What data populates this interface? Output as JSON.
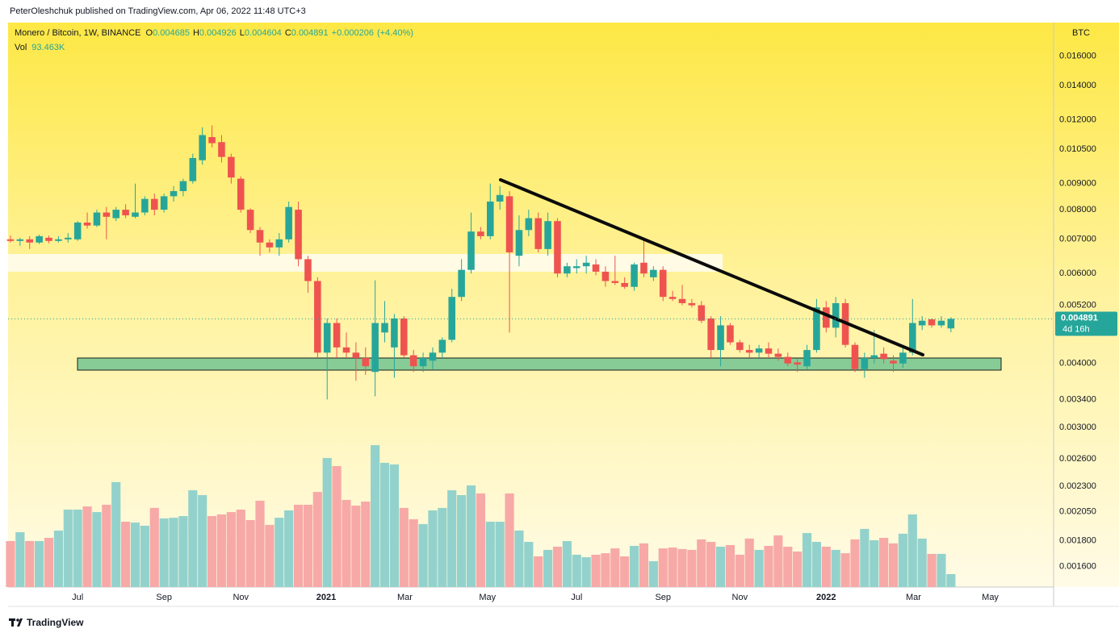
{
  "chart_data": {
    "type": "candlestick",
    "published": "PeterOleshchuk published on TradingView.com, Apr 06, 2022 11:48 UTC+3",
    "title": "Monero / Bitcoin, 1W, BINANCE",
    "ohlc_letters": [
      "O",
      "H",
      "L",
      "C"
    ],
    "change": "+0.000206",
    "change_pct": "(+4.40%)",
    "unit": "BTC",
    "countdown": "4d 16h",
    "brand": "TradingView",
    "up_color": "#26a69a",
    "down_color": "#ef5350",
    "log_scale": true,
    "grid": false,
    "x": [
      0,
      1,
      2,
      3,
      4,
      5,
      6,
      7,
      8,
      9,
      10,
      11,
      12,
      13,
      14,
      15,
      16,
      17,
      18,
      19,
      20,
      21,
      22,
      23,
      24,
      25,
      26,
      27,
      28,
      29,
      30,
      31,
      32,
      33,
      34,
      35,
      36,
      37,
      38,
      39,
      40,
      41,
      42,
      43,
      44,
      45,
      46,
      47,
      48,
      49,
      50,
      51,
      52,
      53,
      54,
      55,
      56,
      57,
      58,
      59,
      60,
      61,
      62,
      63,
      64,
      65,
      66,
      67,
      68,
      69,
      70,
      71,
      72,
      73,
      74,
      75,
      76,
      77,
      78,
      79,
      80,
      81,
      82,
      83,
      84,
      85,
      86,
      87,
      88,
      89,
      90,
      91,
      92,
      93,
      94,
      95,
      96,
      97,
      98
    ],
    "xlim": [
      -0.25,
      108.7
    ],
    "xticks": [
      {
        "value": 7.0,
        "label": "Jul"
      },
      {
        "value": 16.0,
        "label": "Sep"
      },
      {
        "value": 24.0,
        "label": "Nov"
      },
      {
        "value": 32.9,
        "label": "2021"
      },
      {
        "value": 41.1,
        "label": "Mar"
      },
      {
        "value": 49.7,
        "label": "May"
      },
      {
        "value": 59.0,
        "label": "Jul"
      },
      {
        "value": 68.0,
        "label": "Sep"
      },
      {
        "value": 76.0,
        "label": "Nov"
      },
      {
        "value": 85.0,
        "label": "2022"
      },
      {
        "value": 94.1,
        "label": "Mar"
      },
      {
        "value": 102.1,
        "label": "May"
      }
    ],
    "ylim": [
      0.00146,
      0.0186
    ],
    "yticks": [
      {
        "value": 0.016,
        "label": "0.016000"
      },
      {
        "value": 0.014,
        "label": "0.014000"
      },
      {
        "value": 0.012,
        "label": "0.012000"
      },
      {
        "value": 0.0105,
        "label": "0.010500"
      },
      {
        "value": 0.009,
        "label": "0.009000"
      },
      {
        "value": 0.008,
        "label": "0.008000"
      },
      {
        "value": 0.007,
        "label": "0.007000"
      },
      {
        "value": 0.006,
        "label": "0.006000"
      },
      {
        "value": 0.0052,
        "label": "0.005200"
      },
      {
        "value": 0.004,
        "label": "0.004000"
      },
      {
        "value": 0.0034,
        "label": "0.003400"
      },
      {
        "value": 0.003,
        "label": "0.003000"
      },
      {
        "value": 0.0026,
        "label": "0.002600"
      },
      {
        "value": 0.0023,
        "label": "0.002300"
      },
      {
        "value": 0.00205,
        "label": "0.002050"
      },
      {
        "value": 0.0018,
        "label": "0.001800"
      },
      {
        "value": 0.0016,
        "label": "0.001600"
      }
    ],
    "open": [
      0.007,
      0.00695,
      0.007,
      0.0069,
      0.00705,
      0.00695,
      0.007,
      0.007,
      0.00755,
      0.00745,
      0.0079,
      0.0077,
      0.008,
      0.00775,
      0.0079,
      0.0084,
      0.008,
      0.0085,
      0.0087,
      0.0091,
      0.01,
      0.0111,
      0.01085,
      0.01015,
      0.0092,
      0.008,
      0.0073,
      0.0069,
      0.00675,
      0.007,
      0.008,
      0.0064,
      0.0058,
      0.0042,
      0.0048,
      0.0043,
      0.0042,
      0.0041,
      0.00385,
      0.0046,
      0.0043,
      0.0049,
      0.00415,
      0.00395,
      0.00405,
      0.0042,
      0.00445,
      0.0054,
      0.0061,
      0.00725,
      0.0071,
      0.0083,
      0.0085,
      0.0065,
      0.0073,
      0.0077,
      0.0067,
      0.0076,
      0.006,
      0.00615,
      0.0062,
      0.00625,
      0.00605,
      0.0058,
      0.00575,
      0.00565,
      0.0063,
      0.0059,
      0.0061,
      0.0054,
      0.00535,
      0.00525,
      0.0052,
      0.0049,
      0.00425,
      0.00475,
      0.0044,
      0.00425,
      0.0042,
      0.00428,
      0.00418,
      0.00412,
      0.00402,
      0.00395,
      0.00425,
      0.00515,
      0.0047,
      0.00525,
      0.00435,
      0.0039,
      0.0041,
      0.00418,
      0.00405,
      0.004,
      0.0042,
      0.00475,
      0.00488,
      0.00475,
      0.004685
    ],
    "high": [
      0.00712,
      0.00705,
      0.0071,
      0.00715,
      0.00712,
      0.0071,
      0.0072,
      0.0076,
      0.0079,
      0.008,
      0.0081,
      0.0081,
      0.0082,
      0.009,
      0.0085,
      0.0086,
      0.0086,
      0.0089,
      0.0092,
      0.0103,
      0.0116,
      0.0117,
      0.0112,
      0.0103,
      0.0093,
      0.00805,
      0.0074,
      0.007,
      0.0072,
      0.0083,
      0.0083,
      0.0065,
      0.0059,
      0.0049,
      0.0049,
      0.0046,
      0.0044,
      0.0043,
      0.00582,
      0.0053,
      0.005,
      0.00495,
      0.00425,
      0.0042,
      0.0043,
      0.0045,
      0.0056,
      0.0064,
      0.0079,
      0.0074,
      0.009,
      0.0089,
      0.0087,
      0.0078,
      0.008,
      0.0079,
      0.0079,
      0.0077,
      0.0063,
      0.0064,
      0.0065,
      0.0064,
      0.0062,
      0.0065,
      0.0059,
      0.0063,
      0.007,
      0.0062,
      0.0062,
      0.00555,
      0.0057,
      0.00535,
      0.0053,
      0.00495,
      0.00495,
      0.0048,
      0.00445,
      0.00435,
      0.00435,
      0.0044,
      0.00428,
      0.0042,
      0.00408,
      0.00435,
      0.00535,
      0.0053,
      0.0054,
      0.00535,
      0.0044,
      0.0042,
      0.00465,
      0.0043,
      0.00415,
      0.0043,
      0.00535,
      0.00495,
      0.0049,
      0.00495,
      0.004926
    ],
    "low": [
      0.0069,
      0.0068,
      0.0067,
      0.00685,
      0.00688,
      0.0069,
      0.0069,
      0.00695,
      0.00735,
      0.0074,
      0.007,
      0.0076,
      0.0077,
      0.0077,
      0.0078,
      0.0078,
      0.0079,
      0.0083,
      0.0085,
      0.009,
      0.0098,
      0.0106,
      0.0099,
      0.009,
      0.0079,
      0.0072,
      0.0065,
      0.0066,
      0.0065,
      0.0069,
      0.0062,
      0.0055,
      0.0041,
      0.0034,
      0.0041,
      0.0041,
      0.0037,
      0.0038,
      0.00345,
      0.0044,
      0.00375,
      0.0041,
      0.00385,
      0.00385,
      0.0039,
      0.0041,
      0.0044,
      0.0053,
      0.006,
      0.007,
      0.007,
      0.008,
      0.0046,
      0.0062,
      0.0071,
      0.0066,
      0.0065,
      0.0059,
      0.0059,
      0.006,
      0.006,
      0.00595,
      0.00565,
      0.0057,
      0.0056,
      0.00555,
      0.0059,
      0.0058,
      0.0053,
      0.0053,
      0.0052,
      0.00515,
      0.0048,
      0.0041,
      0.00395,
      0.00435,
      0.0042,
      0.0041,
      0.0041,
      0.0041,
      0.00405,
      0.00395,
      0.00385,
      0.0039,
      0.0042,
      0.0046,
      0.0045,
      0.0043,
      0.00385,
      0.00375,
      0.004,
      0.004,
      0.00385,
      0.00392,
      0.00415,
      0.00465,
      0.0047,
      0.0047,
      0.004604
    ],
    "close": [
      0.00695,
      0.007,
      0.0069,
      0.0071,
      0.00695,
      0.007,
      0.00705,
      0.00755,
      0.00745,
      0.0079,
      0.00775,
      0.008,
      0.0078,
      0.0079,
      0.0084,
      0.008,
      0.0085,
      0.0087,
      0.0091,
      0.0101,
      0.0112,
      0.0108,
      0.01015,
      0.00925,
      0.008,
      0.0073,
      0.0069,
      0.00675,
      0.007,
      0.0081,
      0.0064,
      0.0058,
      0.0042,
      0.0048,
      0.0043,
      0.0042,
      0.0041,
      0.00395,
      0.0048,
      0.0048,
      0.0049,
      0.00415,
      0.00395,
      0.0041,
      0.0042,
      0.00445,
      0.0054,
      0.0061,
      0.00725,
      0.0071,
      0.0083,
      0.00855,
      0.0066,
      0.0073,
      0.0077,
      0.0067,
      0.0076,
      0.006,
      0.0062,
      0.0062,
      0.0063,
      0.00605,
      0.0058,
      0.00575,
      0.00565,
      0.00625,
      0.006,
      0.0061,
      0.0054,
      0.00535,
      0.00525,
      0.0052,
      0.00485,
      0.00425,
      0.00475,
      0.0044,
      0.00425,
      0.0042,
      0.00428,
      0.00418,
      0.00412,
      0.004,
      0.00398,
      0.00425,
      0.00515,
      0.0047,
      0.00525,
      0.00435,
      0.0039,
      0.0041,
      0.00415,
      0.00408,
      0.004,
      0.0042,
      0.0048,
      0.00485,
      0.00475,
      0.00485,
      0.004891
    ],
    "volume": {
      "name": "Vol",
      "up_color": "#93d2cc",
      "down_color": "#f7a9a7",
      "ylim": [
        0,
        4090000
      ],
      "last_label": "93.463K",
      "values": [
        333000,
        397000,
        333000,
        333000,
        356000,
        409000,
        561000,
        561000,
        584000,
        543000,
        596000,
        760000,
        473000,
        467000,
        444000,
        573000,
        497000,
        502000,
        514000,
        701000,
        666000,
        514000,
        526000,
        543000,
        561000,
        485000,
        625000,
        450000,
        502000,
        555000,
        596000,
        596000,
        689000,
        935000,
        876000,
        631000,
        590000,
        619000,
        1028000,
        900000,
        888000,
        573000,
        491000,
        456000,
        555000,
        573000,
        701000,
        666000,
        736000,
        678000,
        473000,
        473000,
        678000,
        409000,
        327000,
        222000,
        269000,
        292000,
        333000,
        234000,
        216000,
        234000,
        245000,
        280000,
        222000,
        298000,
        316000,
        187000,
        280000,
        286000,
        275000,
        269000,
        345000,
        327000,
        292000,
        304000,
        234000,
        351000,
        269000,
        298000,
        374000,
        292000,
        257000,
        391000,
        327000,
        292000,
        269000,
        245000,
        345000,
        421000,
        339000,
        356000,
        316000,
        386000,
        526000,
        351000,
        240000,
        240000,
        93463
      ]
    }
  }
}
